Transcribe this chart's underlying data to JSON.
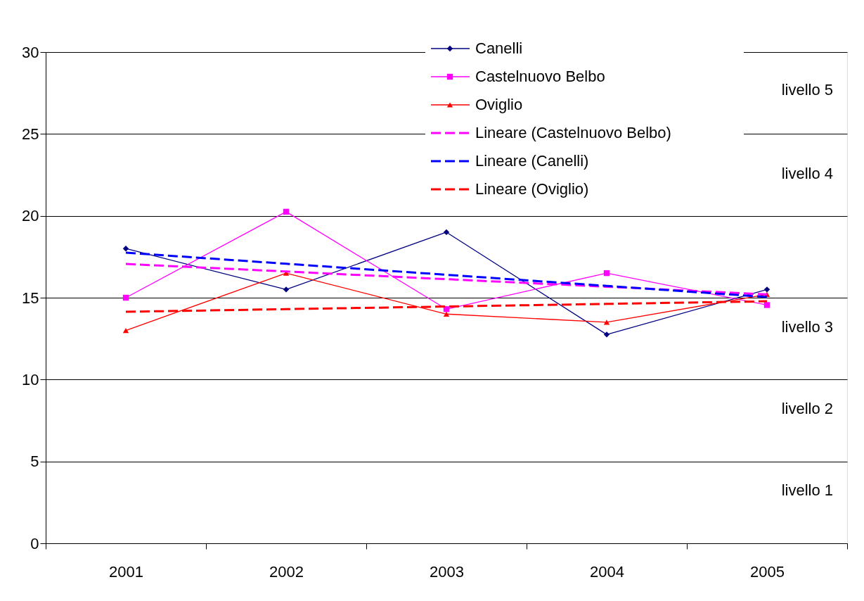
{
  "chart_data": {
    "type": "line",
    "categories": [
      "2001",
      "2002",
      "2003",
      "2004",
      "2005"
    ],
    "series": [
      {
        "name": "Canelli",
        "color": "#000080",
        "marker": "diamond",
        "line_style": "solid",
        "values": [
          18.0,
          15.5,
          19.0,
          12.75,
          15.5
        ]
      },
      {
        "name": "Castelnuovo Belbo",
        "color": "#ff00ff",
        "marker": "square",
        "line_style": "solid",
        "values": [
          15.0,
          20.25,
          14.3,
          16.5,
          14.55
        ]
      },
      {
        "name": "Oviglio",
        "color": "#ff0000",
        "marker": "triangle",
        "line_style": "solid",
        "values": [
          13.0,
          16.5,
          14.0,
          13.5,
          15.2
        ]
      },
      {
        "name": "Lineare (Castelnuovo Belbo)",
        "color": "#ff00ff",
        "marker": "none",
        "line_style": "dashed",
        "values": [
          17.06,
          16.6,
          16.13,
          15.67,
          15.2
        ]
      },
      {
        "name": "Lineare (Canelli)",
        "color": "#0000ff",
        "marker": "none",
        "line_style": "dashed",
        "values": [
          17.75,
          17.07,
          16.4,
          15.72,
          15.04
        ]
      },
      {
        "name": "Lineare (Oviglio)",
        "color": "#ff0000",
        "marker": "none",
        "line_style": "dashed",
        "values": [
          14.14,
          14.3,
          14.46,
          14.62,
          14.78
        ]
      }
    ],
    "ylim": [
      0,
      30
    ],
    "yticks": [
      0,
      5,
      10,
      15,
      20,
      25,
      30
    ],
    "grid": "y",
    "legend": "top right",
    "annotations": [
      "livello 5",
      "livello 4",
      "livello 3",
      "livello 2",
      "livello 1"
    ]
  }
}
